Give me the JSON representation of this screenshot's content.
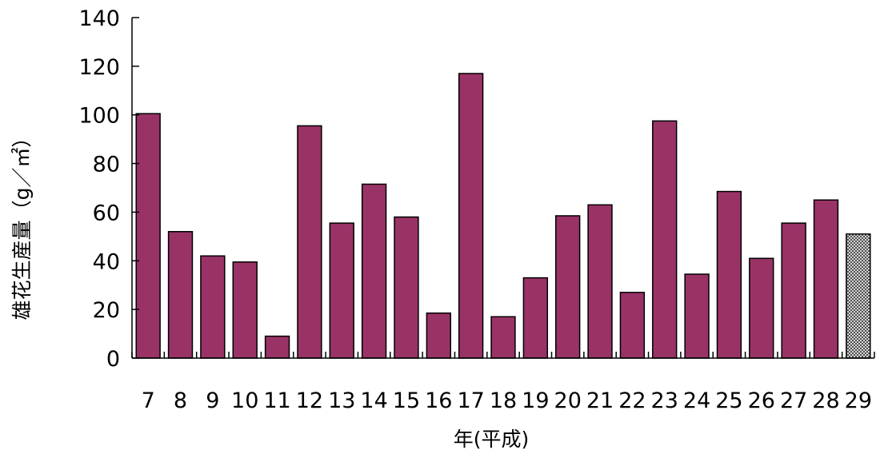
{
  "chart_data": {
    "type": "bar",
    "categories": [
      "7",
      "8",
      "9",
      "10",
      "11",
      "12",
      "13",
      "14",
      "15",
      "16",
      "17",
      "18",
      "19",
      "20",
      "21",
      "22",
      "23",
      "24",
      "25",
      "26",
      "27",
      "28",
      "29"
    ],
    "values": [
      100.5,
      52,
      42,
      39.5,
      9,
      95.5,
      55.5,
      71.5,
      58,
      18.5,
      117,
      17,
      33,
      58.5,
      63,
      27,
      97.5,
      34.5,
      68.5,
      41,
      55.5,
      65,
      51
    ],
    "title": "",
    "xlabel": "年(平成)",
    "ylabel": "雄花生産量（g／㎡）",
    "ylim": [
      0,
      140
    ],
    "yticks": [
      "0",
      "20",
      "40",
      "60",
      "80",
      "100",
      "120",
      "140"
    ],
    "grid": false,
    "legend": "none",
    "bar_color": "#993366",
    "last_bar_pattern": "crosshatch"
  }
}
